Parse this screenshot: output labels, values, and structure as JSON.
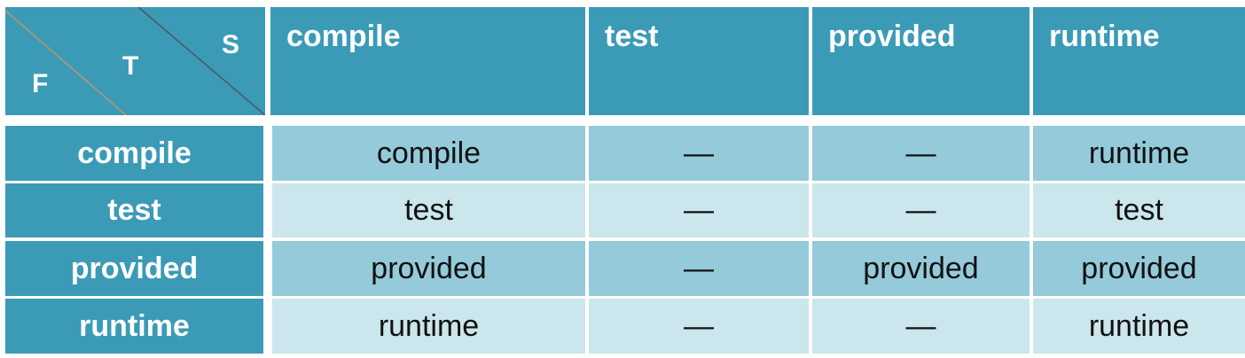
{
  "corner": {
    "source_label": "S",
    "transitive_label": "T",
    "first_label": "F"
  },
  "columns": [
    "compile",
    "test",
    "provided",
    "runtime"
  ],
  "rows": [
    {
      "header": "compile",
      "cells": [
        "compile",
        "—",
        "—",
        "runtime"
      ]
    },
    {
      "header": "test",
      "cells": [
        "test",
        "—",
        "—",
        "test"
      ]
    },
    {
      "header": "provided",
      "cells": [
        "provided",
        "—",
        "provided",
        "provided"
      ]
    },
    {
      "header": "runtime",
      "cells": [
        "runtime",
        "—",
        "—",
        "runtime"
      ]
    }
  ],
  "colors": {
    "header": "#3b9bb7",
    "band_dark": "#94cad9",
    "band_light": "#cbe6ed"
  }
}
